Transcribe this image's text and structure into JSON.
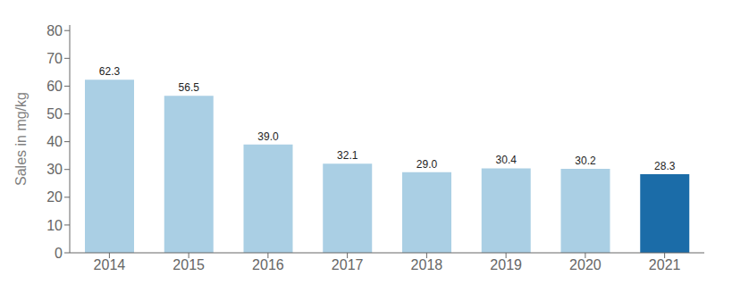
{
  "chart_data": {
    "type": "bar",
    "ylabel": "Sales in mg/kg",
    "categories": [
      "2014",
      "2015",
      "2016",
      "2017",
      "2018",
      "2019",
      "2020",
      "2021"
    ],
    "values": [
      62.3,
      56.5,
      39.0,
      32.1,
      29.0,
      30.4,
      30.2,
      28.3
    ],
    "value_labels": [
      "62.3",
      "56.5",
      "39.0",
      "32.1",
      "29.0",
      "30.4",
      "30.2",
      "28.3"
    ],
    "colors": [
      "#aacfe4",
      "#aacfe4",
      "#aacfe4",
      "#aacfe4",
      "#aacfe4",
      "#aacfe4",
      "#aacfe4",
      "#1b6ca8"
    ],
    "ylim": [
      0,
      82
    ],
    "yticks": [
      0,
      10,
      20,
      30,
      40,
      50,
      60,
      70,
      80
    ],
    "grid": false,
    "data_labels": true
  }
}
